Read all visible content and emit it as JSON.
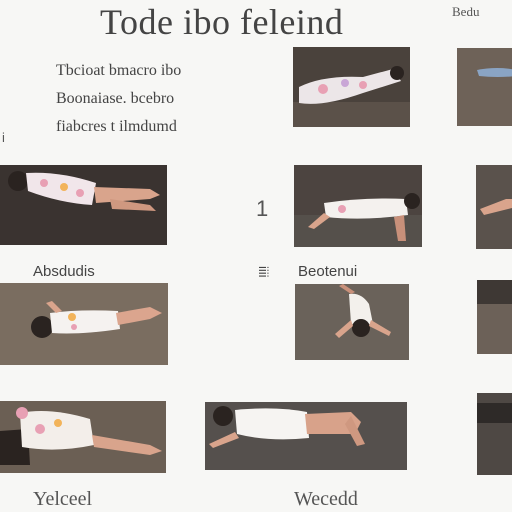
{
  "header": {
    "title": "Tode ibo feleind",
    "corner": "Bedu"
  },
  "intro": {
    "line1": "Tbcioat bmacro  ibo",
    "line2": "Boonaiase. bcebro",
    "line3": "fiabcres t ilmdumd",
    "margin_mark": "i"
  },
  "captions": {
    "row3_left": "Absdudis",
    "row3_mid": "Beotenui",
    "side_label": "iiii",
    "row2_mark": "1",
    "bottom_left": "Yelceel",
    "bottom_mid": "Wecedd"
  },
  "colors": {
    "floor_dark": "#3e3834",
    "floor_warm": "#6d6256",
    "shirt": "#f2eeea",
    "skin": "#d9a48c",
    "pattern_pink": "#e8a0b4",
    "hair": "#2a2320"
  }
}
